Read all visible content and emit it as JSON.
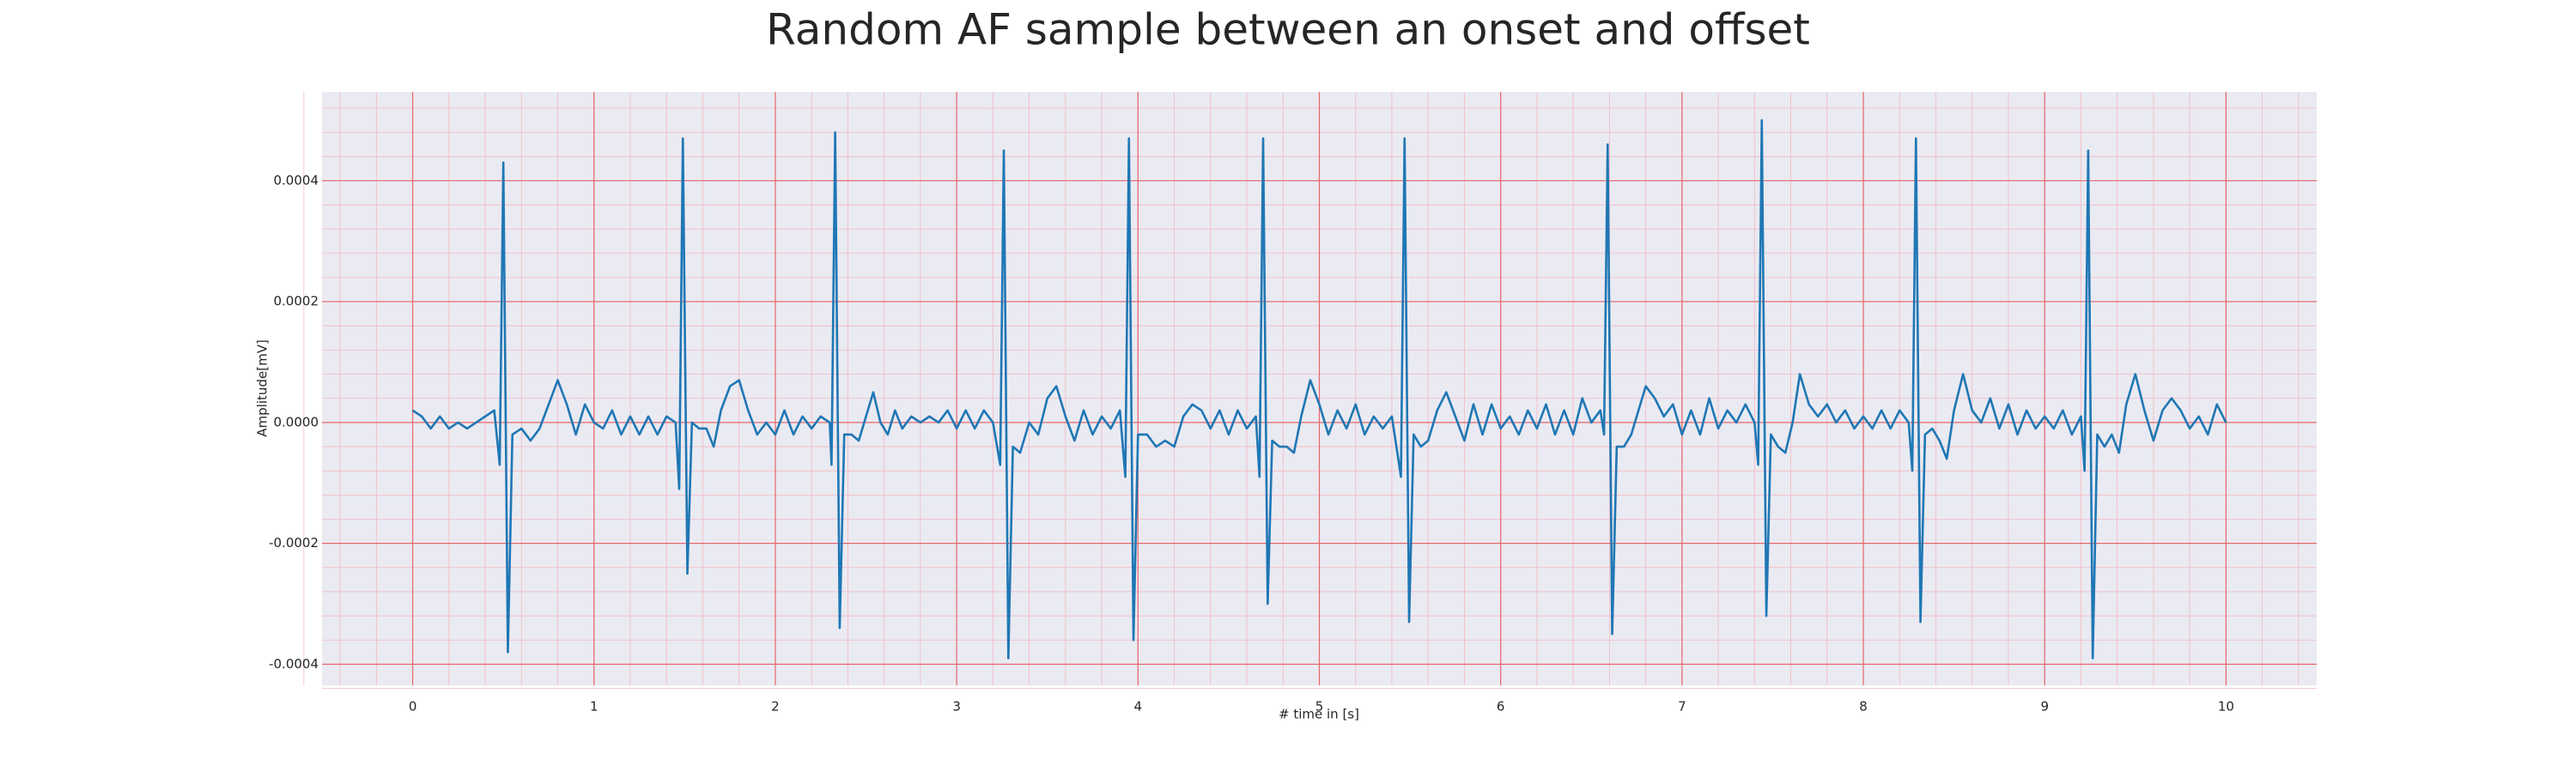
{
  "chart_data": {
    "type": "line",
    "title": "Random AF sample between an onset and offset",
    "x_label": "# time in [s]",
    "y_label": "Amplitude[mV]",
    "color": "#1f77b4",
    "background": "#eaeaf2",
    "grid": true,
    "grid_color": "#e8666a",
    "minor_grid": true,
    "minor_grid_color": "#f3b8c0",
    "xlim": [
      -0.5,
      10.5
    ],
    "xticks": [
      0,
      1,
      2,
      3,
      4,
      5,
      6,
      7,
      8,
      9,
      10
    ],
    "ylim": [
      -0.000435,
      0.000547
    ],
    "yticks": [
      -0.0004,
      -0.0002,
      {
        "value": 0,
        "label": "0.0000"
      },
      0.0002,
      0.0004
    ],
    "x": [
      0,
      0.05,
      0.1,
      0.15,
      0.2,
      0.25,
      0.3,
      0.35,
      0.4,
      0.45,
      0.48,
      0.5,
      0.525,
      0.55,
      0.6,
      0.65,
      0.7,
      0.75,
      0.8,
      0.85,
      0.9,
      0.95,
      1,
      1.05,
      1.1,
      1.15,
      1.2,
      1.25,
      1.3,
      1.35,
      1.4,
      1.45,
      1.47,
      1.49,
      1.515,
      1.54,
      1.58,
      1.62,
      1.66,
      1.7,
      1.75,
      1.8,
      1.85,
      1.9,
      1.95,
      2,
      2.05,
      2.1,
      2.15,
      2.2,
      2.25,
      2.3,
      2.31,
      2.33,
      2.355,
      2.38,
      2.42,
      2.46,
      2.5,
      2.54,
      2.58,
      2.62,
      2.66,
      2.7,
      2.75,
      2.8,
      2.85,
      2.9,
      2.95,
      3,
      3.05,
      3.1,
      3.15,
      3.2,
      3.24,
      3.26,
      3.285,
      3.31,
      3.35,
      3.4,
      3.45,
      3.5,
      3.55,
      3.6,
      3.65,
      3.7,
      3.75,
      3.8,
      3.85,
      3.9,
      3.93,
      3.95,
      3.975,
      4,
      4.05,
      4.1,
      4.15,
      4.2,
      4.25,
      4.3,
      4.35,
      4.4,
      4.45,
      4.5,
      4.55,
      4.6,
      4.65,
      4.67,
      4.69,
      4.715,
      4.74,
      4.78,
      4.82,
      4.86,
      4.9,
      4.95,
      5,
      5.05,
      5.1,
      5.15,
      5.2,
      5.25,
      5.3,
      5.35,
      5.4,
      5.45,
      5.47,
      5.495,
      5.52,
      5.56,
      5.6,
      5.65,
      5.7,
      5.75,
      5.8,
      5.85,
      5.9,
      5.95,
      6,
      6.05,
      6.1,
      6.15,
      6.2,
      6.25,
      6.3,
      6.35,
      6.4,
      6.45,
      6.5,
      6.55,
      6.57,
      6.59,
      6.615,
      6.64,
      6.68,
      6.72,
      6.76,
      6.8,
      6.85,
      6.9,
      6.95,
      7,
      7.05,
      7.1,
      7.15,
      7.2,
      7.25,
      7.3,
      7.35,
      7.4,
      7.42,
      7.44,
      7.465,
      7.49,
      7.53,
      7.57,
      7.61,
      7.65,
      7.7,
      7.75,
      7.8,
      7.85,
      7.9,
      7.95,
      8,
      8.05,
      8.1,
      8.15,
      8.2,
      8.25,
      8.27,
      8.29,
      8.315,
      8.34,
      8.38,
      8.42,
      8.46,
      8.5,
      8.55,
      8.6,
      8.65,
      8.7,
      8.75,
      8.8,
      8.85,
      8.9,
      8.95,
      9,
      9.05,
      9.1,
      9.15,
      9.2,
      9.22,
      9.24,
      9.265,
      9.29,
      9.33,
      9.37,
      9.41,
      9.45,
      9.5,
      9.55,
      9.6,
      9.65,
      9.7,
      9.75,
      9.8,
      9.85,
      9.9,
      9.95,
      10
    ],
    "values": [
      2e-05,
      1e-05,
      -1e-05,
      1e-05,
      -1e-05,
      0,
      -1e-05,
      0,
      1e-05,
      2e-05,
      -7e-05,
      0.00043,
      -0.00038,
      -2e-05,
      -1e-05,
      -3e-05,
      -1e-05,
      3e-05,
      7e-05,
      3e-05,
      -2e-05,
      3e-05,
      0,
      -1e-05,
      2e-05,
      -2e-05,
      1e-05,
      -2e-05,
      1e-05,
      -2e-05,
      1e-05,
      0,
      -0.00011,
      0.00047,
      -0.00025,
      0,
      -1e-05,
      -1e-05,
      -4e-05,
      2e-05,
      6e-05,
      7e-05,
      2e-05,
      -2e-05,
      0,
      -2e-05,
      2e-05,
      -2e-05,
      1e-05,
      -1e-05,
      1e-05,
      0,
      -7e-05,
      0.00048,
      -0.00034,
      -2e-05,
      -2e-05,
      -3e-05,
      1e-05,
      5e-05,
      0,
      -2e-05,
      2e-05,
      -1e-05,
      1e-05,
      0,
      1e-05,
      0,
      2e-05,
      -1e-05,
      2e-05,
      -1e-05,
      2e-05,
      0,
      -7e-05,
      0.00045,
      -0.00039,
      -4e-05,
      -5e-05,
      0,
      -2e-05,
      4e-05,
      6e-05,
      1e-05,
      -3e-05,
      2e-05,
      -2e-05,
      1e-05,
      -1e-05,
      2e-05,
      -9e-05,
      0.00047,
      -0.00036,
      -2e-05,
      -2e-05,
      -4e-05,
      -3e-05,
      -4e-05,
      1e-05,
      3e-05,
      2e-05,
      -1e-05,
      2e-05,
      -2e-05,
      2e-05,
      -1e-05,
      1e-05,
      -9e-05,
      0.00047,
      -0.0003,
      -3e-05,
      -4e-05,
      -4e-05,
      -5e-05,
      1e-05,
      7e-05,
      3e-05,
      -2e-05,
      2e-05,
      -1e-05,
      3e-05,
      -2e-05,
      1e-05,
      -1e-05,
      1e-05,
      -9e-05,
      0.00047,
      -0.00033,
      -2e-05,
      -4e-05,
      -3e-05,
      2e-05,
      5e-05,
      1e-05,
      -3e-05,
      3e-05,
      -2e-05,
      3e-05,
      -1e-05,
      1e-05,
      -2e-05,
      2e-05,
      -1e-05,
      3e-05,
      -2e-05,
      2e-05,
      -2e-05,
      4e-05,
      0,
      2e-05,
      -2e-05,
      0.00046,
      -0.00035,
      -4e-05,
      -4e-05,
      -2e-05,
      2e-05,
      6e-05,
      4e-05,
      1e-05,
      3e-05,
      -2e-05,
      2e-05,
      -2e-05,
      4e-05,
      -1e-05,
      2e-05,
      0,
      3e-05,
      0,
      -7e-05,
      0.0005,
      -0.00032,
      -2e-05,
      -4e-05,
      -5e-05,
      0,
      8e-05,
      3e-05,
      1e-05,
      3e-05,
      0,
      2e-05,
      -1e-05,
      1e-05,
      -1e-05,
      2e-05,
      -1e-05,
      2e-05,
      0,
      -8e-05,
      0.00047,
      -0.00033,
      -2e-05,
      -1e-05,
      -3e-05,
      -6e-05,
      2e-05,
      8e-05,
      2e-05,
      0,
      4e-05,
      -1e-05,
      3e-05,
      -2e-05,
      2e-05,
      -1e-05,
      1e-05,
      -1e-05,
      2e-05,
      -2e-05,
      1e-05,
      -8e-05,
      0.00045,
      -0.00039,
      -2e-05,
      -4e-05,
      -2e-05,
      -5e-05,
      3e-05,
      8e-05,
      2e-05,
      -3e-05,
      2e-05,
      4e-05,
      2e-05,
      -1e-05,
      1e-05,
      -2e-05,
      3e-05,
      0
    ]
  }
}
